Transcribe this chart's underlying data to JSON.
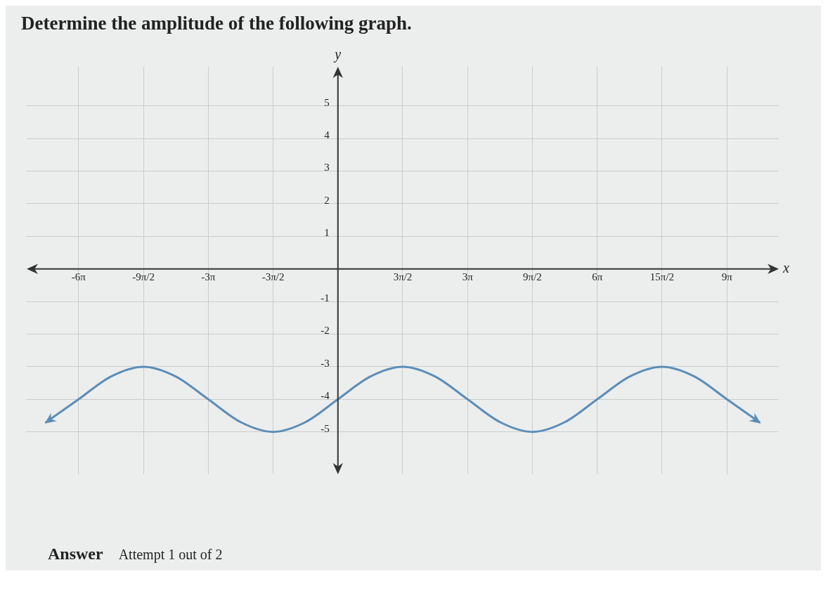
{
  "chart_data": {
    "type": "line",
    "title": "Determine the amplitude of the following graph.",
    "xlabel": "x",
    "ylabel": "y",
    "annotations": [
      "Answer",
      "Attempt 1 out of 2"
    ],
    "categories": [
      null,
      "-6π",
      null,
      "-9π/2",
      null,
      "-3π",
      null,
      "-3π/2",
      null,
      null,
      null,
      "3π/2",
      null,
      "3π",
      null,
      "9π/2",
      null,
      "6π",
      null,
      "15π/2",
      null,
      "9π",
      null
    ],
    "series": [
      {
        "color": "#5b8db8",
        "values": [
          -4.7,
          -4,
          -3.3,
          -3,
          -3.3,
          -4,
          -4.7,
          -5,
          -4.7,
          -4,
          -3.3,
          -3,
          -3.3,
          -4,
          -4.7,
          -5,
          -4.7,
          -4,
          -3.3,
          -3,
          -3.3,
          -4,
          -4.7
        ]
      }
    ],
    "ylim": [
      -6.3,
      6.2
    ],
    "yticks": [
      -5,
      -4,
      -3,
      -2,
      -1,
      1,
      2,
      3,
      4,
      5
    ],
    "grid": true,
    "legend": false,
    "marker": "none",
    "line_style": "solid"
  }
}
